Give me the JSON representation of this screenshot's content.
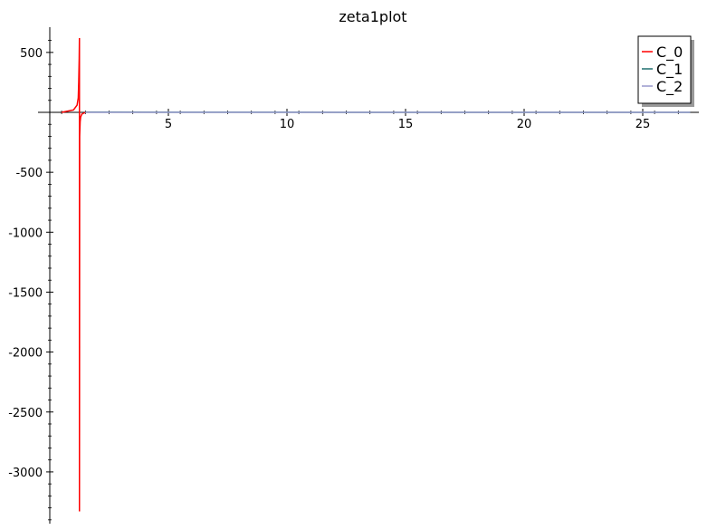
{
  "chart_data": {
    "type": "line",
    "title": "zeta1plot",
    "xlabel": "",
    "ylabel": "",
    "xlim": [
      0,
      27
    ],
    "ylim": [
      -3400,
      700
    ],
    "x_ticks": [
      5,
      10,
      15,
      20,
      25
    ],
    "x_tick_labels": [
      "5",
      "10",
      "15",
      "20",
      "25"
    ],
    "y_ticks": [
      500,
      -500,
      -1000,
      -1500,
      -2000,
      -2500,
      -3000
    ],
    "y_tick_labels": [
      "500",
      "-500",
      "-1000",
      "-1500",
      "-2000",
      "-2500",
      "-3000"
    ],
    "grid": false,
    "legend": "top-right",
    "series": [
      {
        "name": "C_0",
        "color": "#ff0000",
        "x": [
          0.5,
          1.0,
          1.15,
          1.2,
          1.22,
          1.24,
          1.25,
          1.25,
          1.26,
          1.28,
          1.3,
          1.35,
          1.5
        ],
        "y": [
          0,
          20,
          60,
          120,
          250,
          450,
          620,
          -3330,
          -200,
          -80,
          -40,
          -15,
          0
        ]
      },
      {
        "name": "C_1",
        "color": "#1f6f6f",
        "x": [
          1.5,
          5,
          10,
          15,
          20,
          25,
          27
        ],
        "y": [
          2,
          1,
          0.5,
          0.3,
          0.2,
          0.1,
          0.1
        ]
      },
      {
        "name": "C_2",
        "color": "#9999cc",
        "x": [
          1.5,
          5,
          10,
          15,
          20,
          25,
          27
        ],
        "y": [
          0,
          0,
          0,
          0,
          0,
          0,
          0
        ]
      }
    ]
  }
}
